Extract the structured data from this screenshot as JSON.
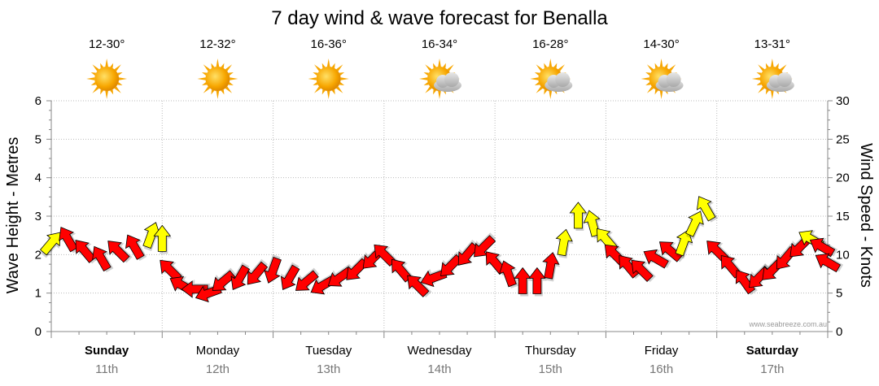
{
  "chart_data": {
    "type": "line",
    "title": "7 day wind & wave forecast for Benalla",
    "ylabel_left": "Wave Height - Metres",
    "ylabel_right": "Wind Speed - Knots",
    "ylim_left": [
      0,
      6
    ],
    "ylim_right": [
      0,
      30
    ],
    "yticks_left": [
      "0",
      "1",
      "2",
      "3",
      "4",
      "5",
      "6"
    ],
    "yticks_right": [
      "0",
      "5",
      "10",
      "15",
      "20",
      "25",
      "30"
    ],
    "grid": true,
    "days": [
      {
        "name": "Sunday",
        "date": "11th",
        "bold": true,
        "temp": "12-30°",
        "weather": "sunny"
      },
      {
        "name": "Monday",
        "date": "12th",
        "bold": false,
        "temp": "12-32°",
        "weather": "sunny"
      },
      {
        "name": "Tuesday",
        "date": "13th",
        "bold": false,
        "temp": "16-36°",
        "weather": "sunny"
      },
      {
        "name": "Wednesday",
        "date": "14th",
        "bold": false,
        "temp": "16-34°",
        "weather": "partly-cloudy"
      },
      {
        "name": "Thursday",
        "date": "15th",
        "bold": false,
        "temp": "16-28°",
        "weather": "partly-cloudy"
      },
      {
        "name": "Friday",
        "date": "16th",
        "bold": false,
        "temp": "14-30°",
        "weather": "partly-cloudy"
      },
      {
        "name": "Saturday",
        "date": "17th",
        "bold": true,
        "temp": "13-31°",
        "weather": "partly-cloudy"
      }
    ],
    "wind_series": {
      "name": "",
      "unit": "knots",
      "arrow_colors": {
        "normal": "#ff0000",
        "strong": "#ffff00"
      },
      "points": [
        {
          "t": 0.0,
          "knots": 11.5,
          "dir": 40,
          "c": "y"
        },
        {
          "t": 0.15,
          "knots": 12.0,
          "dir": 330,
          "c": "r"
        },
        {
          "t": 0.3,
          "knots": 10.5,
          "dir": 320,
          "c": "r"
        },
        {
          "t": 0.45,
          "knots": 9.5,
          "dir": 330,
          "c": "r"
        },
        {
          "t": 0.6,
          "knots": 10.5,
          "dir": 315,
          "c": "r"
        },
        {
          "t": 0.75,
          "knots": 11.0,
          "dir": 330,
          "c": "r"
        },
        {
          "t": 0.9,
          "knots": 12.5,
          "dir": 20,
          "c": "y"
        },
        {
          "t": 1.0,
          "knots": 12.0,
          "dir": 0,
          "c": "y"
        },
        {
          "t": 1.07,
          "knots": 8.0,
          "dir": 315,
          "c": "r"
        },
        {
          "t": 1.18,
          "knots": 6.0,
          "dir": 300,
          "c": "r"
        },
        {
          "t": 1.3,
          "knots": 5.5,
          "dir": 270,
          "c": "r"
        },
        {
          "t": 1.42,
          "knots": 5.0,
          "dir": 250,
          "c": "r"
        },
        {
          "t": 1.55,
          "knots": 6.5,
          "dir": 230,
          "c": "r"
        },
        {
          "t": 1.7,
          "knots": 7.0,
          "dir": 210,
          "c": "r"
        },
        {
          "t": 1.85,
          "knots": 7.5,
          "dir": 220,
          "c": "r"
        },
        {
          "t": 2.0,
          "knots": 8.0,
          "dir": 200,
          "c": "r"
        },
        {
          "t": 2.15,
          "knots": 7.0,
          "dir": 210,
          "c": "r"
        },
        {
          "t": 2.3,
          "knots": 6.5,
          "dir": 230,
          "c": "r"
        },
        {
          "t": 2.45,
          "knots": 6.0,
          "dir": 240,
          "c": "r"
        },
        {
          "t": 2.6,
          "knots": 7.0,
          "dir": 235,
          "c": "r"
        },
        {
          "t": 2.75,
          "knots": 8.0,
          "dir": 225,
          "c": "r"
        },
        {
          "t": 2.9,
          "knots": 9.5,
          "dir": 225,
          "c": "r"
        },
        {
          "t": 3.0,
          "knots": 10.0,
          "dir": 315,
          "c": "r"
        },
        {
          "t": 3.15,
          "knots": 8.0,
          "dir": 320,
          "c": "r"
        },
        {
          "t": 3.3,
          "knots": 6.0,
          "dir": 315,
          "c": "r"
        },
        {
          "t": 3.45,
          "knots": 7.0,
          "dir": 250,
          "c": "r"
        },
        {
          "t": 3.6,
          "knots": 8.5,
          "dir": 225,
          "c": "r"
        },
        {
          "t": 3.75,
          "knots": 10.0,
          "dir": 220,
          "c": "r"
        },
        {
          "t": 3.9,
          "knots": 11.0,
          "dir": 225,
          "c": "r"
        },
        {
          "t": 4.0,
          "knots": 9.0,
          "dir": 320,
          "c": "r"
        },
        {
          "t": 4.12,
          "knots": 7.5,
          "dir": 340,
          "c": "r"
        },
        {
          "t": 4.25,
          "knots": 6.5,
          "dir": 0,
          "c": "r"
        },
        {
          "t": 4.38,
          "knots": 6.5,
          "dir": 0,
          "c": "r"
        },
        {
          "t": 4.5,
          "knots": 8.5,
          "dir": 10,
          "c": "r"
        },
        {
          "t": 4.62,
          "knots": 11.5,
          "dir": 10,
          "c": "y"
        },
        {
          "t": 4.75,
          "knots": 15.0,
          "dir": 0,
          "c": "y"
        },
        {
          "t": 4.88,
          "knots": 14.0,
          "dir": 345,
          "c": "y"
        },
        {
          "t": 5.0,
          "knots": 12.0,
          "dir": 320,
          "c": "y"
        },
        {
          "t": 5.08,
          "knots": 10.0,
          "dir": 315,
          "c": "r"
        },
        {
          "t": 5.2,
          "knots": 8.5,
          "dir": 320,
          "c": "r"
        },
        {
          "t": 5.32,
          "knots": 8.0,
          "dir": 315,
          "c": "r"
        },
        {
          "t": 5.45,
          "knots": 9.5,
          "dir": 300,
          "c": "r"
        },
        {
          "t": 5.58,
          "knots": 10.5,
          "dir": 310,
          "c": "r"
        },
        {
          "t": 5.7,
          "knots": 11.5,
          "dir": 20,
          "c": "y"
        },
        {
          "t": 5.8,
          "knots": 14.0,
          "dir": 25,
          "c": "y"
        },
        {
          "t": 5.9,
          "knots": 16.0,
          "dir": 330,
          "c": "y"
        },
        {
          "t": 6.0,
          "knots": 10.5,
          "dir": 315,
          "c": "r"
        },
        {
          "t": 6.12,
          "knots": 8.5,
          "dir": 320,
          "c": "r"
        },
        {
          "t": 6.25,
          "knots": 6.5,
          "dir": 325,
          "c": "r"
        },
        {
          "t": 6.38,
          "knots": 7.0,
          "dir": 225,
          "c": "r"
        },
        {
          "t": 6.5,
          "knots": 8.0,
          "dir": 225,
          "c": "r"
        },
        {
          "t": 6.62,
          "knots": 9.5,
          "dir": 220,
          "c": "r"
        },
        {
          "t": 6.75,
          "knots": 11.0,
          "dir": 225,
          "c": "r"
        },
        {
          "t": 6.85,
          "knots": 12.0,
          "dir": 300,
          "c": "y"
        },
        {
          "t": 6.95,
          "knots": 11.0,
          "dir": 300,
          "c": "r"
        },
        {
          "t": 7.0,
          "knots": 9.0,
          "dir": 300,
          "c": "r"
        }
      ]
    }
  },
  "credit": "www.seabreeze.com.au",
  "colors": {
    "grid": "#bbbbbb",
    "axis": "#888888",
    "sun": "#f7a600",
    "cloud": "#b8b8b8"
  }
}
